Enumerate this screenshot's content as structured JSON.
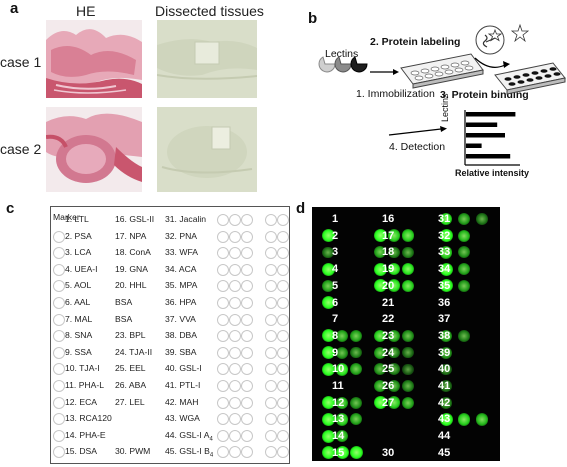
{
  "panels": {
    "a": "a",
    "b": "b",
    "c": "c",
    "d": "d"
  },
  "panel_a": {
    "col_he": "HE",
    "col_dissected": "Dissected tissues",
    "case1": "case 1",
    "case2": "case 2"
  },
  "panel_b": {
    "lectins": "Lectins",
    "step1": "1. Immobilization",
    "step2": "2. Protein labeling",
    "step3": "3. Protein binding",
    "step4": "4. Detection",
    "ylabel": "Lectins",
    "xlabel": "Relative intensity",
    "bar_values": [
      0.95,
      0.6,
      0.75,
      0.3,
      0.85
    ]
  },
  "panel_c": {
    "marker": "Marker",
    "col1": [
      "1. LTL",
      "2. PSA",
      "3. LCA",
      "4. UEA-I",
      "5. AOL",
      "6. AAL",
      "7. MAL",
      "8. SNA",
      "9. SSA",
      "10. TJA-I",
      "11. PHA-L",
      "12. ECA",
      "13. RCA120",
      "14. PHA-E",
      "15. DSA"
    ],
    "col2": [
      "16. GSL-II",
      "17. NPA",
      "18. ConA",
      "19. GNA",
      "20. HHL",
      "BSA",
      "BSA",
      "23. BPL",
      "24. TJA-II",
      "25. EEL",
      "26. ABA",
      "27. LEL",
      "",
      "",
      "30. PWM"
    ],
    "col3": [
      "31. Jacalin",
      "32. PNA",
      "33. WFA",
      "34. ACA",
      "35. MPA",
      "36. HPA",
      "37. VVA",
      "38. DBA",
      "39. SBA",
      "40. GSL-I",
      "41. PTL-I",
      "42. MAH",
      "43. WGA",
      "44. GSL-I A",
      "45. GSL-I B"
    ],
    "sub44": "4",
    "sub45": "4"
  },
  "panel_d": {
    "col1": [
      "1",
      "2",
      "3",
      "4",
      "5",
      "6",
      "7",
      "8",
      "9",
      "10",
      "11",
      "12",
      "13",
      "14",
      "15"
    ],
    "col2": [
      "16",
      "17",
      "18",
      "19",
      "20",
      "21",
      "22",
      "23",
      "24",
      "25",
      "26",
      "27",
      "",
      "",
      "30"
    ],
    "col3": [
      "31",
      "32",
      "33",
      "34",
      "35",
      "36",
      "37",
      "38",
      "39",
      "40",
      "41",
      "42",
      "43",
      "44",
      "45"
    ],
    "intensity": [
      [
        0,
        0,
        0,
        0,
        0,
        0,
        0.9,
        0.55,
        0.35
      ],
      [
        1,
        0,
        0,
        1,
        0.8,
        0.8,
        1,
        0.7,
        0
      ],
      [
        0.35,
        0,
        0,
        0.6,
        0.4,
        0.4,
        0.8,
        0.5,
        0
      ],
      [
        1,
        0,
        0,
        1,
        0.9,
        0.9,
        1,
        0.6,
        0
      ],
      [
        0.6,
        0,
        0,
        1,
        0.9,
        0.8,
        1,
        0.55,
        0
      ],
      [
        1,
        0,
        0,
        0,
        0,
        0,
        0,
        0,
        0
      ],
      [
        0,
        0,
        0,
        0,
        0,
        0,
        0,
        0,
        0
      ],
      [
        1,
        0.6,
        0.6,
        0.8,
        0.6,
        0.5,
        0.6,
        0.4,
        0
      ],
      [
        1,
        0.5,
        0.4,
        0.6,
        0.4,
        0.3,
        0.5,
        0,
        0
      ],
      [
        1,
        0.9,
        0.6,
        0.5,
        0.4,
        0.2,
        0.3,
        0,
        0
      ],
      [
        0,
        0,
        0,
        0.6,
        0.5,
        0.4,
        0.3,
        0,
        0
      ],
      [
        1,
        0.7,
        0.5,
        1,
        0.8,
        0.6,
        0.4,
        0,
        0
      ],
      [
        1,
        0.8,
        0.6,
        0,
        0,
        0,
        1,
        0.8,
        0.7
      ],
      [
        1,
        0.7,
        0,
        0,
        0,
        0,
        0,
        0,
        0
      ],
      [
        1,
        1,
        1,
        0,
        0,
        0,
        0,
        0,
        0
      ]
    ]
  }
}
